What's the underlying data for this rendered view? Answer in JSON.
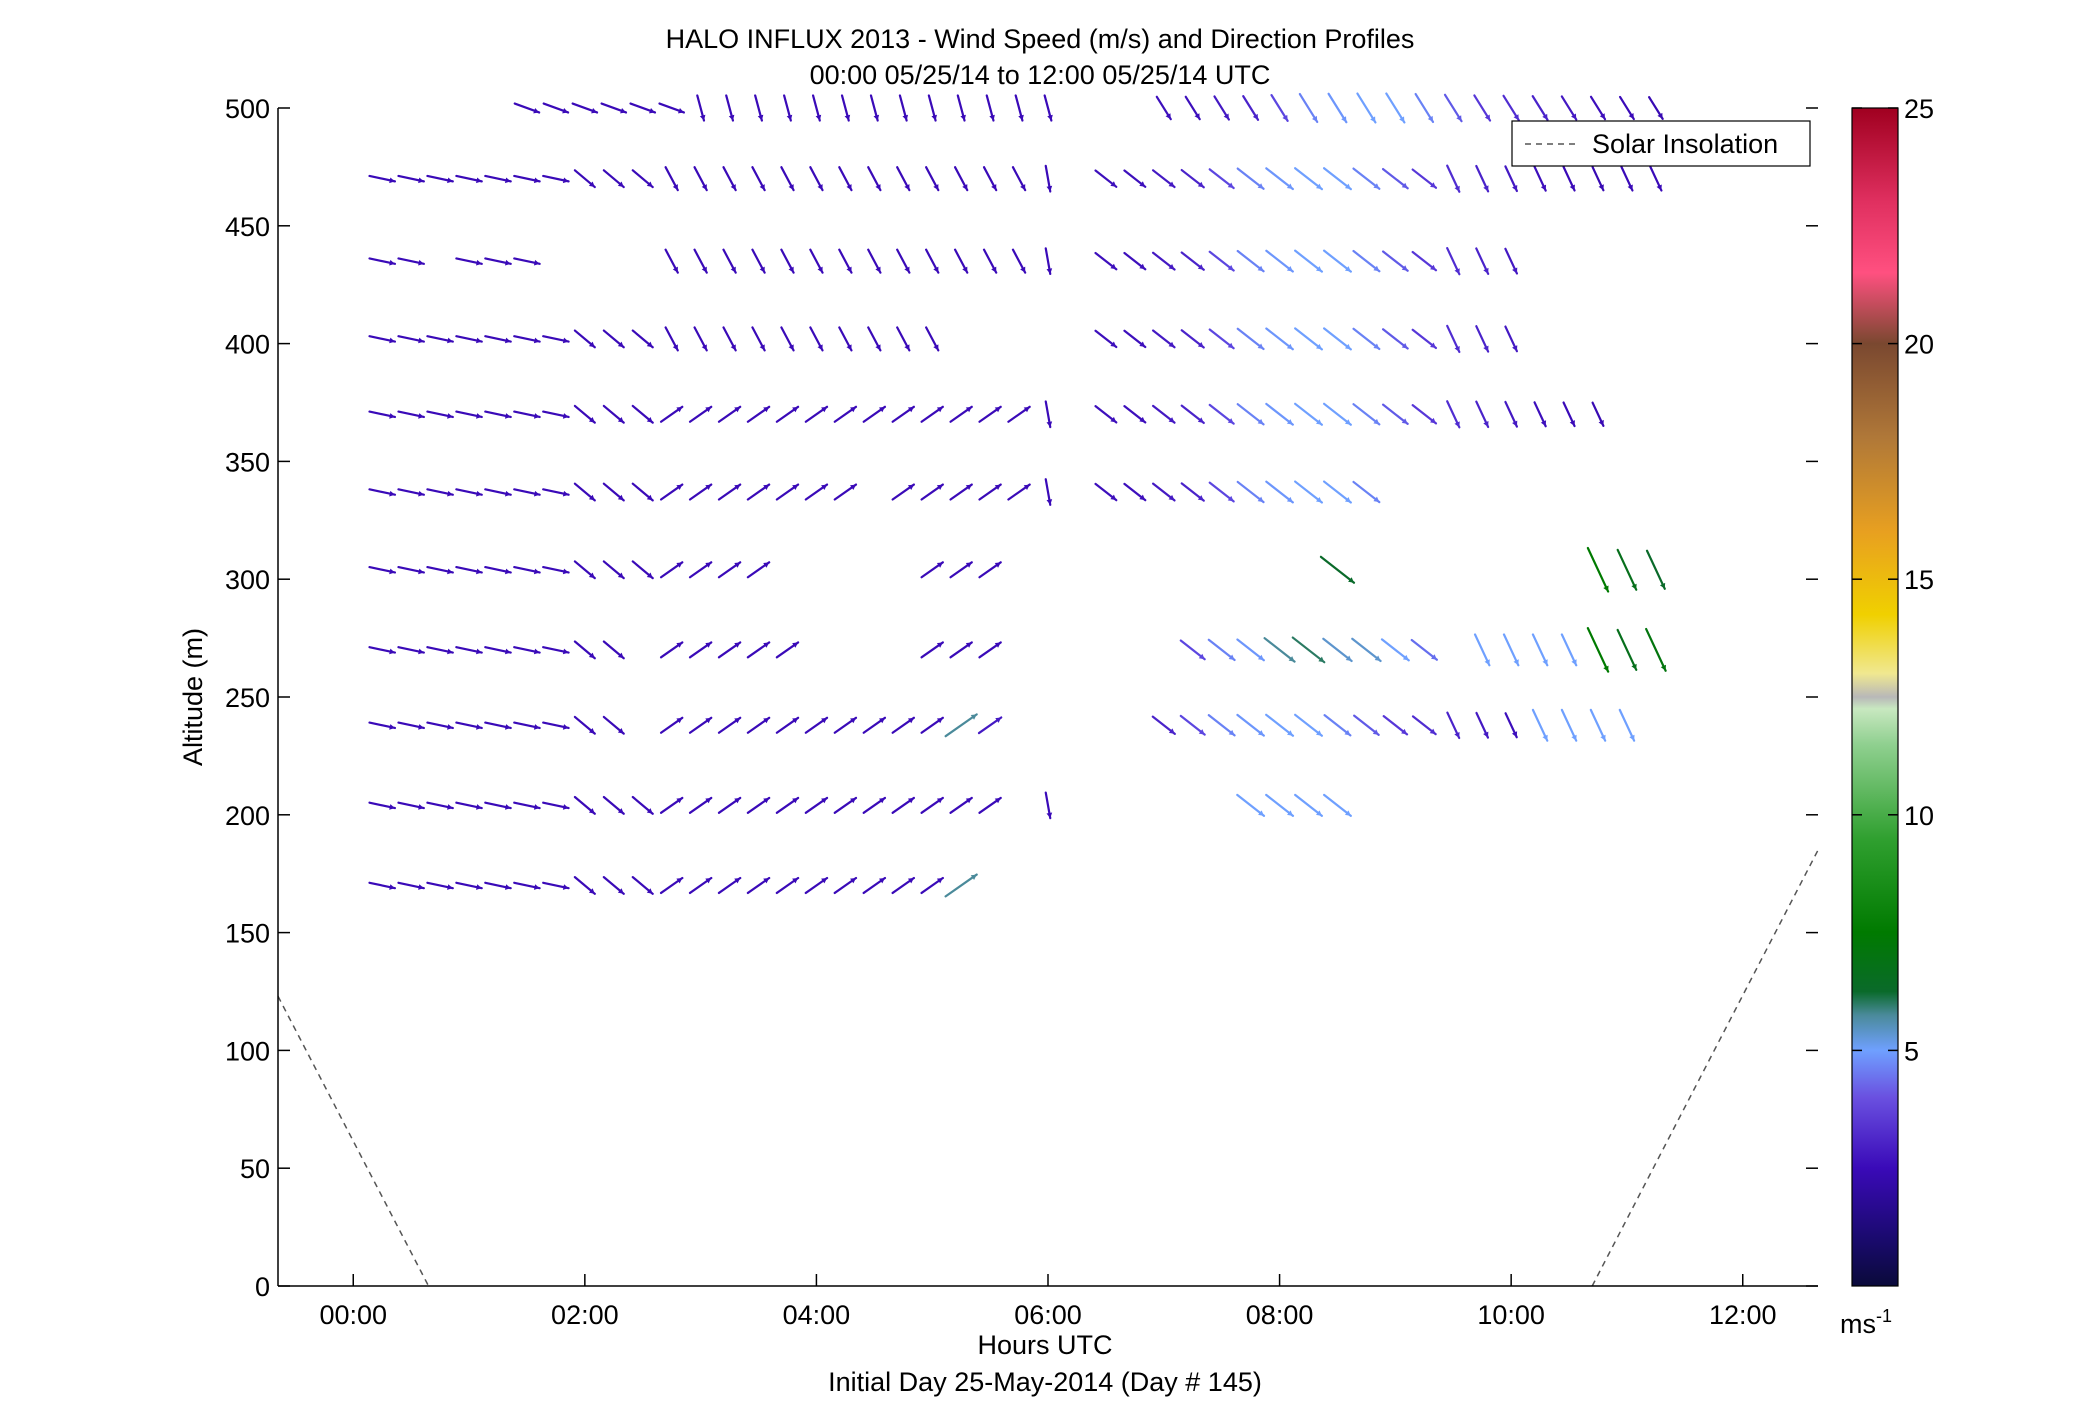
{
  "chart_data": {
    "type": "quiver",
    "title": "HALO INFLUX 2013 - Wind Speed (m/s) and Direction Profiles",
    "subtitle": "00:00 05/25/14 to 12:00 05/25/14  UTC",
    "xlabel": "Hours UTC",
    "xlabel2": "Initial Day 25-May-2014 (Day # 145)",
    "ylabel": "Altitude (m)",
    "xlim": [
      -0.65,
      12.65
    ],
    "ylim": [
      0,
      500
    ],
    "xticks": [
      0,
      2,
      4,
      6,
      8,
      10,
      12
    ],
    "xtick_labels": [
      "00:00",
      "02:00",
      "04:00",
      "06:00",
      "08:00",
      "10:00",
      "12:00"
    ],
    "yticks": [
      0,
      50,
      100,
      150,
      200,
      250,
      300,
      350,
      400,
      450,
      500
    ],
    "ytick_labels": [
      "0",
      "50",
      "100",
      "150",
      "200",
      "250",
      "300",
      "350",
      "400",
      "450",
      "500"
    ],
    "grid": false,
    "legend": {
      "position": "top-right",
      "entries": [
        "Solar Insolation"
      ]
    },
    "colorbar": {
      "range": [
        0,
        25
      ],
      "ticks": [
        5,
        10,
        15,
        20,
        25
      ],
      "tick_labels": [
        "5",
        "10",
        "15",
        "20",
        "25"
      ],
      "unit_label": "ms",
      "unit_exp": "-1"
    },
    "solar_insolation": [
      {
        "x": [
          -0.65,
          0.65
        ],
        "y": [
          123,
          0
        ]
      },
      {
        "x": [
          10.7,
          12.65
        ],
        "y": [
          0,
          185
        ]
      }
    ],
    "wind_rows": [
      {
        "altitude": 500,
        "dir": "steep",
        "x": [
          1.5,
          1.75,
          2.0,
          2.25,
          2.5,
          2.75,
          3.0,
          3.25,
          3.5,
          3.75,
          4.0,
          4.25,
          4.5,
          4.75,
          5.0,
          5.25,
          5.5,
          5.75,
          6.0,
          7.0,
          7.25,
          7.5,
          7.75,
          8.0,
          8.25,
          8.5,
          8.75,
          9.0,
          9.25,
          9.5,
          9.75,
          10.0,
          10.25,
          10.5,
          10.75,
          11.0,
          11.25
        ],
        "speed": [
          2.5,
          2.5,
          2.5,
          2.5,
          2.5,
          2.5,
          2.5,
          2.5,
          2.5,
          2.5,
          2.5,
          2.5,
          2.5,
          2.5,
          2.5,
          2.5,
          2.5,
          2.5,
          2.5,
          2.6,
          2.6,
          2.8,
          3.0,
          3.6,
          4.2,
          4.4,
          4.5,
          4.5,
          4.2,
          3.8,
          3.4,
          3.2,
          3.0,
          2.8,
          2.6,
          2.5,
          2.4
        ]
      },
      {
        "altitude": 470,
        "dir": "west",
        "x": [
          0.25,
          0.5,
          0.75,
          1.0,
          1.25,
          1.5,
          1.75,
          2.0,
          2.25,
          2.5,
          2.75,
          3.0,
          3.25,
          3.5,
          3.75,
          4.0,
          4.25,
          4.5,
          4.75,
          5.0,
          5.25,
          5.5,
          5.75,
          6.0,
          6.5,
          6.75,
          7.0,
          7.25,
          7.5,
          7.75,
          8.0,
          8.25,
          8.5,
          8.75,
          9.0,
          9.25,
          9.5,
          9.75,
          10.0,
          10.25,
          10.5,
          10.75,
          11.0,
          11.25
        ],
        "speed": [
          2.5,
          2.5,
          2.5,
          2.5,
          2.5,
          2.5,
          2.5,
          2.5,
          2.5,
          2.5,
          2.5,
          2.5,
          2.5,
          2.5,
          2.5,
          2.5,
          2.5,
          2.5,
          2.5,
          2.5,
          2.5,
          2.5,
          2.5,
          2.5,
          2.6,
          2.6,
          2.8,
          3.0,
          3.6,
          4.2,
          4.4,
          4.5,
          4.5,
          4.2,
          3.8,
          3.4,
          3.2,
          3.0,
          2.8,
          2.6,
          2.5,
          2.4,
          2.5,
          2.5
        ]
      },
      {
        "altitude": 435,
        "dir": "west",
        "x": [
          0.25,
          0.5,
          1.0,
          1.25,
          1.5,
          2.75,
          3.0,
          3.25,
          3.5,
          3.75,
          4.0,
          4.25,
          4.5,
          4.75,
          5.0,
          5.25,
          5.5,
          5.75,
          6.0,
          6.5,
          6.75,
          7.0,
          7.25,
          7.5,
          7.75,
          8.0,
          8.25,
          8.5,
          8.75,
          9.0,
          9.25,
          9.5,
          9.75,
          10.0
        ],
        "speed": [
          2.5,
          2.5,
          2.5,
          2.5,
          2.5,
          2.5,
          2.5,
          2.5,
          2.5,
          2.5,
          2.5,
          2.5,
          2.5,
          2.5,
          2.5,
          2.5,
          2.5,
          2.5,
          2.5,
          2.6,
          2.6,
          2.8,
          3.0,
          3.6,
          4.2,
          4.4,
          4.5,
          4.5,
          4.2,
          3.8,
          3.4,
          3.2,
          3.0,
          2.8
        ]
      },
      {
        "altitude": 402,
        "dir": "west",
        "x": [
          0.25,
          0.5,
          0.75,
          1.0,
          1.25,
          1.5,
          1.75,
          2.0,
          2.25,
          2.5,
          2.75,
          3.0,
          3.25,
          3.5,
          3.75,
          4.0,
          4.25,
          4.5,
          4.75,
          5.0,
          6.5,
          6.75,
          7.0,
          7.25,
          7.5,
          7.75,
          8.0,
          8.25,
          8.5,
          8.75,
          9.0,
          9.25,
          9.5,
          9.75,
          10.0
        ],
        "speed": [
          2.5,
          2.5,
          2.5,
          2.5,
          2.5,
          2.5,
          2.5,
          2.5,
          2.5,
          2.5,
          2.5,
          2.5,
          2.5,
          2.5,
          2.5,
          2.5,
          2.5,
          2.5,
          2.5,
          2.5,
          2.6,
          2.6,
          2.8,
          3.0,
          3.6,
          4.2,
          4.4,
          4.5,
          4.5,
          4.2,
          3.8,
          3.4,
          3.2,
          3.0,
          2.8
        ]
      },
      {
        "altitude": 370,
        "dir": "west",
        "x": [
          0.25,
          0.5,
          0.75,
          1.0,
          1.25,
          1.5,
          1.75,
          2.0,
          2.25,
          2.5,
          2.75,
          3.0,
          3.25,
          3.5,
          3.75,
          4.0,
          4.25,
          4.5,
          4.75,
          5.0,
          5.25,
          5.5,
          5.75,
          6.0,
          6.5,
          6.75,
          7.0,
          7.25,
          7.5,
          7.75,
          8.0,
          8.25,
          8.5,
          8.75,
          9.0,
          9.25,
          9.5,
          9.75,
          10.0,
          10.25,
          10.5,
          10.75
        ],
        "speed": [
          2.5,
          2.5,
          2.5,
          2.5,
          2.5,
          2.5,
          2.5,
          2.5,
          2.5,
          2.5,
          2.5,
          2.5,
          2.5,
          2.5,
          2.5,
          2.5,
          2.5,
          2.5,
          2.5,
          2.5,
          2.5,
          2.5,
          2.5,
          2.5,
          2.6,
          2.6,
          2.8,
          3.0,
          3.6,
          4.2,
          4.4,
          4.5,
          4.5,
          4.2,
          3.8,
          3.4,
          3.2,
          3.0,
          2.8,
          2.6,
          2.5,
          2.4
        ]
      },
      {
        "altitude": 337,
        "dir": "west",
        "x": [
          0.25,
          0.5,
          0.75,
          1.0,
          1.25,
          1.5,
          1.75,
          2.0,
          2.25,
          2.5,
          2.75,
          3.0,
          3.25,
          3.5,
          3.75,
          4.0,
          4.25,
          4.75,
          5.0,
          5.25,
          5.5,
          5.75,
          6.0,
          6.5,
          6.75,
          7.0,
          7.25,
          7.5,
          7.75,
          8.0,
          8.25,
          8.5,
          8.75
        ],
        "speed": [
          2.5,
          2.5,
          2.5,
          2.5,
          2.5,
          2.5,
          2.5,
          2.5,
          2.5,
          2.5,
          2.5,
          2.5,
          2.5,
          2.5,
          2.5,
          2.5,
          2.5,
          2.5,
          2.5,
          2.5,
          2.5,
          2.5,
          2.5,
          2.6,
          2.6,
          2.8,
          3.0,
          3.6,
          4.2,
          4.4,
          4.5,
          4.5,
          4.2
        ]
      },
      {
        "altitude": 304,
        "dir": "west",
        "x": [
          0.25,
          0.5,
          0.75,
          1.0,
          1.25,
          1.5,
          1.75,
          2.0,
          2.25,
          2.5,
          2.75,
          3.0,
          3.25,
          3.5,
          5.0,
          5.25,
          5.5,
          8.5,
          10.75,
          11.0,
          11.25
        ],
        "speed": [
          2.5,
          2.5,
          2.5,
          2.5,
          2.5,
          2.5,
          2.5,
          2.5,
          2.5,
          2.5,
          2.5,
          2.5,
          2.5,
          2.5,
          2.5,
          2.5,
          2.5,
          6.5,
          8.0,
          7.0,
          6.5
        ]
      },
      {
        "altitude": 270,
        "dir": "west",
        "x": [
          0.25,
          0.5,
          0.75,
          1.0,
          1.25,
          1.5,
          1.75,
          2.0,
          2.25,
          2.75,
          3.0,
          3.25,
          3.5,
          3.75,
          5.0,
          5.25,
          5.5,
          7.25,
          7.5,
          7.75,
          8.0,
          8.25,
          8.5,
          8.75,
          9.0,
          9.25,
          9.75,
          10.0,
          10.25,
          10.5,
          10.75,
          11.0,
          11.25
        ],
        "speed": [
          2.5,
          2.5,
          2.5,
          2.5,
          2.5,
          2.5,
          2.5,
          2.5,
          2.5,
          2.5,
          2.5,
          2.5,
          2.5,
          2.5,
          2.5,
          2.5,
          2.5,
          3.6,
          4.2,
          4.4,
          5.5,
          6.0,
          5.0,
          5.0,
          4.5,
          4.0,
          4.5,
          4.5,
          4.5,
          4.5,
          8.0,
          7.0,
          7.5
        ]
      },
      {
        "altitude": 238,
        "dir": "west",
        "x": [
          0.25,
          0.5,
          0.75,
          1.0,
          1.25,
          1.5,
          1.75,
          2.0,
          2.25,
          2.75,
          3.0,
          3.25,
          3.5,
          3.75,
          4.0,
          4.25,
          4.5,
          4.75,
          5.0,
          5.25,
          5.5,
          7.0,
          7.25,
          7.5,
          7.75,
          8.0,
          8.25,
          8.5,
          8.75,
          9.0,
          9.25,
          9.5,
          9.75,
          10.0,
          10.25,
          10.5,
          10.75,
          11.0
        ],
        "speed": [
          2.5,
          2.5,
          2.5,
          2.5,
          2.5,
          2.5,
          2.5,
          2.5,
          2.5,
          2.5,
          2.5,
          2.5,
          2.5,
          2.5,
          2.5,
          2.5,
          2.5,
          2.5,
          2.5,
          5.5,
          2.8,
          3.0,
          3.6,
          4.2,
          4.4,
          4.5,
          4.5,
          4.2,
          3.8,
          3.4,
          3.2,
          3.0,
          2.8,
          2.6,
          4.5,
          4.5,
          4.5,
          4.5
        ]
      },
      {
        "altitude": 204,
        "dir": "west",
        "x": [
          0.25,
          0.5,
          0.75,
          1.0,
          1.25,
          1.5,
          1.75,
          2.0,
          2.25,
          2.5,
          2.75,
          3.0,
          3.25,
          3.5,
          3.75,
          4.0,
          4.25,
          4.5,
          4.75,
          5.0,
          5.25,
          5.5,
          6.0,
          7.75,
          8.0,
          8.25,
          8.5
        ],
        "speed": [
          2.5,
          2.5,
          2.5,
          2.5,
          2.5,
          2.5,
          2.5,
          2.5,
          2.5,
          2.5,
          2.5,
          2.5,
          2.5,
          2.5,
          2.5,
          2.5,
          2.5,
          2.5,
          2.5,
          2.5,
          2.5,
          2.5,
          2.5,
          4.5,
          4.5,
          4.5,
          4.5
        ]
      },
      {
        "altitude": 170,
        "dir": "west",
        "x": [
          0.25,
          0.5,
          0.75,
          1.0,
          1.25,
          1.5,
          1.75,
          2.0,
          2.25,
          2.5,
          2.75,
          3.0,
          3.25,
          3.5,
          3.75,
          4.0,
          4.25,
          4.5,
          4.75,
          5.0,
          5.25
        ],
        "speed": [
          2.5,
          2.5,
          2.5,
          2.5,
          2.5,
          2.5,
          2.5,
          2.5,
          2.5,
          2.5,
          2.5,
          2.5,
          2.5,
          2.5,
          2.5,
          2.5,
          2.5,
          2.5,
          2.5,
          2.5,
          5.5
        ]
      }
    ]
  }
}
